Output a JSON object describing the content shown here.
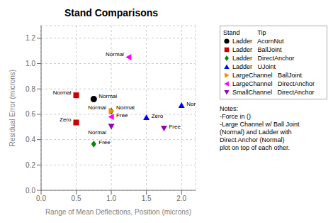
{
  "chart_data": {
    "type": "scatter",
    "title": "Stand Comparisons",
    "xlabel": "Range of Mean Deflections, Position (microns)",
    "ylabel": "Residual Error (microns)",
    "xlim": [
      0.0,
      2.2
    ],
    "ylim": [
      0.0,
      1.3
    ],
    "xticks": [
      {
        "value": 0,
        "label": "0.0"
      },
      0.5,
      {
        "value": 1,
        "label": "1.0"
      },
      1.5,
      {
        "value": 2,
        "label": "2.0"
      }
    ],
    "yticks": [
      {
        "value": 0,
        "label": "0.0"
      },
      0.2,
      0.4,
      0.6,
      0.8,
      {
        "value": 1,
        "label": "1.0"
      },
      1.2
    ],
    "grid": true,
    "legend": "right",
    "legend_title": "Stand          Tip",
    "series": [
      {
        "name": "Ladder   AcornNut",
        "color": "#000000",
        "marker": "circle",
        "x": [
          0.75
        ],
        "values": [
          0.72
        ],
        "point_labels": [
          "Normal"
        ]
      },
      {
        "name": "Ladder   BallJoint",
        "color": "#cc0000",
        "marker": "square",
        "x": [
          0.5,
          0.5
        ],
        "values": [
          0.75,
          0.535
        ],
        "point_labels": [
          "Normal",
          "Zero"
        ]
      },
      {
        "name": "Ladder   DirectAnchor",
        "color": "#008800",
        "marker": "diamond",
        "x": [
          0.75,
          1.0
        ],
        "values": [
          0.365,
          0.625
        ],
        "point_labels": [
          "Free",
          "Normal"
        ]
      },
      {
        "name": "Ladder   UJoint",
        "color": "#0000ee",
        "marker": "triangle-up",
        "x": [
          1.5,
          2.0
        ],
        "values": [
          0.575,
          0.67
        ],
        "point_labels": [
          "Zero",
          "Normal"
        ]
      },
      {
        "name": "LargeChannel   BallJoint",
        "color": "#ff8800",
        "marker": "triangle-right",
        "x": [
          1.0
        ],
        "values": [
          0.625
        ],
        "point_labels": [
          "Normal"
        ]
      },
      {
        "name": "LargeChannel   DirectAnchor",
        "color": "#ff00ff",
        "marker": "triangle-left",
        "x": [
          1.25,
          1.0
        ],
        "values": [
          1.05,
          0.58
        ],
        "point_labels": [
          "Normal",
          "Free"
        ]
      },
      {
        "name": "SmallChannel   DirectAnchor",
        "color": "#9900bb",
        "marker": "triangle-down",
        "x": [
          1.0,
          1.75
        ],
        "values": [
          0.505,
          0.49
        ],
        "point_labels": [
          "Normal",
          "Free"
        ]
      }
    ],
    "annotation": [
      "Notes:",
      "-Force in ()",
      "-Large Channel w/ Ball Joint",
      "(Normal) and Ladder with",
      "Direct Anchor (Normal)",
      "plot on top of each other."
    ]
  }
}
